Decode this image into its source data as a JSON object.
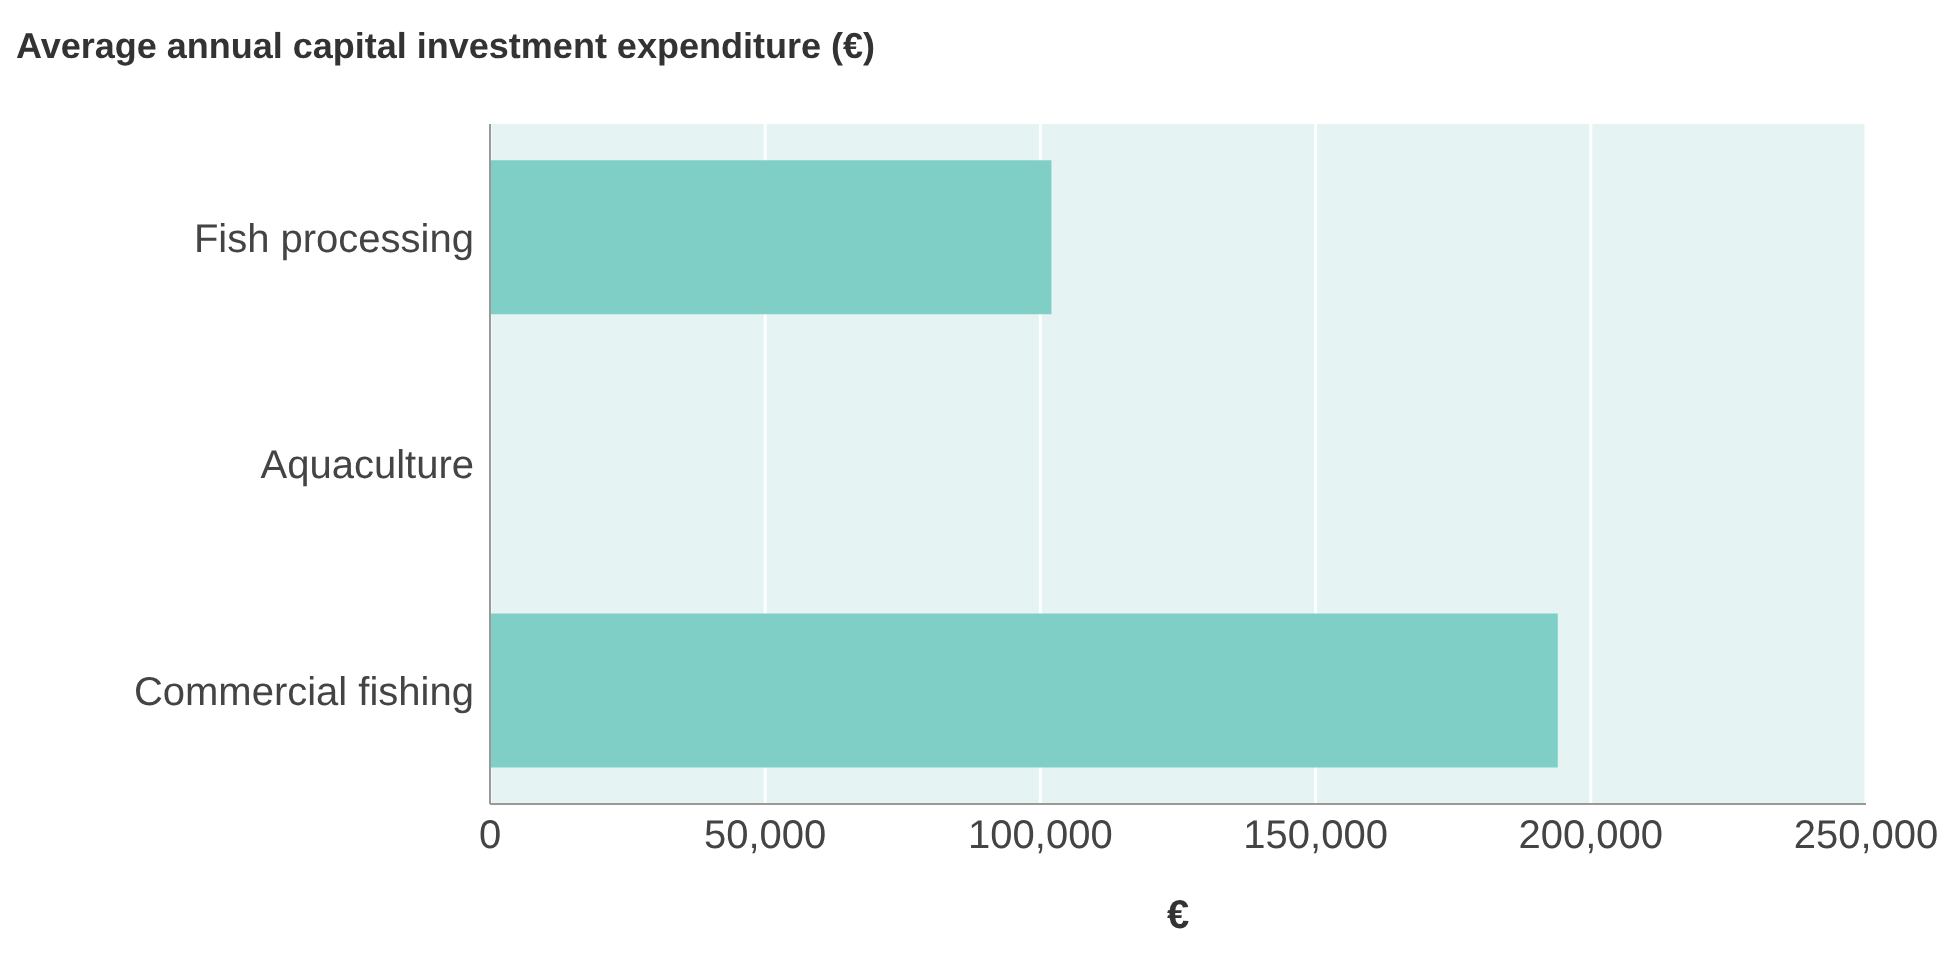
{
  "chart_data": {
    "type": "bar",
    "orientation": "horizontal",
    "title": "Average annual capital investment expenditure (€)",
    "xlabel": "€",
    "categories": [
      "Fish processing",
      "Aquaculture",
      "Commercial fishing"
    ],
    "values": [
      102000,
      null,
      194000
    ],
    "color": "#80cfc7",
    "xlim": [
      0,
      250000
    ],
    "xticks": [
      {
        "value": 0,
        "label": "0"
      },
      {
        "value": 50000,
        "label": "50,000"
      },
      {
        "value": 100000,
        "label": "100,000"
      },
      {
        "value": 150000,
        "label": "150,000"
      },
      {
        "value": 200000,
        "label": "200,000"
      },
      {
        "value": 250000,
        "label": "250,000"
      }
    ],
    "grid": "x"
  }
}
